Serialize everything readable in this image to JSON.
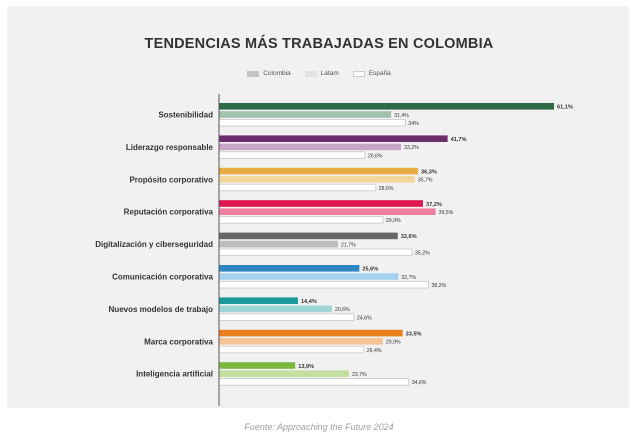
{
  "chart_data": {
    "type": "bar",
    "orientation": "horizontal",
    "title": "TENDENCIAS MÁS TRABAJADAS EN COLOMBIA",
    "source": "Fuente: Approaching the Future 2024",
    "legend": [
      "Colombia",
      "Latam",
      "España"
    ],
    "legend_colors": [
      "#c4c4c4",
      "#e2e2e2",
      "#ffffff"
    ],
    "xlim": [
      0,
      61.1
    ],
    "categories": [
      {
        "label": "Sostenibilidad",
        "color": "#2d6b47",
        "light": "#a3c2ad",
        "colombia": 61.1,
        "latam": 31.4,
        "espana": 34,
        "colombia_label": "61,1%",
        "latam_label": "31,4%",
        "espana_label": "34%"
      },
      {
        "label": "Liderazgo responsable",
        "color": "#6c2e6e",
        "light": "#c6a4c6",
        "colombia": 41.7,
        "latam": 33.2,
        "espana": 26.6,
        "colombia_label": "41,7%",
        "latam_label": "33,2%",
        "espana_label": "26,6%"
      },
      {
        "label": "Propósito corporativo",
        "color": "#e8ad45",
        "light": "#f3d69b",
        "colombia": 36.3,
        "latam": 35.7,
        "espana": 28.6,
        "colombia_label": "36,3%",
        "latam_label": "35,7%",
        "espana_label": "28,6%"
      },
      {
        "label": "Reputación corporativa",
        "color": "#dd1850",
        "light": "#f07fa2",
        "colombia": 37.2,
        "latam": 39.5,
        "espana": 29.9,
        "colombia_label": "37,2%",
        "latam_label": "39,5%",
        "espana_label": "29,9%"
      },
      {
        "label": "Digitalización y ciberseguridad",
        "color": "#666666",
        "light": "#bdbdbd",
        "colombia": 32.6,
        "latam": 21.7,
        "espana": 35.2,
        "colombia_label": "32,6%",
        "latam_label": "21,7%",
        "espana_label": "35,2%"
      },
      {
        "label": "Comunicación corporativa",
        "color": "#2e86c4",
        "light": "#a4d1ee",
        "colombia": 25.6,
        "latam": 32.7,
        "espana": 38.2,
        "colombia_label": "25,6%",
        "latam_label": "32,7%",
        "espana_label": "38,2%"
      },
      {
        "label": "Nuevos modelos de trabajo",
        "color": "#1a9b9b",
        "light": "#9ed6d6",
        "colombia": 14.4,
        "latam": 20.6,
        "espana": 24.6,
        "colombia_label": "14,4%",
        "latam_label": "20,6%",
        "espana_label": "24,6%"
      },
      {
        "label": "Marca corporativa",
        "color": "#ea7f1c",
        "light": "#f5c497",
        "colombia": 33.5,
        "latam": 29.9,
        "espana": 26.4,
        "colombia_label": "33,5%",
        "latam_label": "29,9%",
        "espana_label": "26,4%"
      },
      {
        "label": "Inteligencia artificial",
        "color": "#7ab840",
        "light": "#c2df9e",
        "colombia": 13.9,
        "latam": 23.7,
        "espana": 34.6,
        "colombia_label": "13,9%",
        "latam_label": "23,7%",
        "espana_label": "34,6%"
      }
    ]
  }
}
